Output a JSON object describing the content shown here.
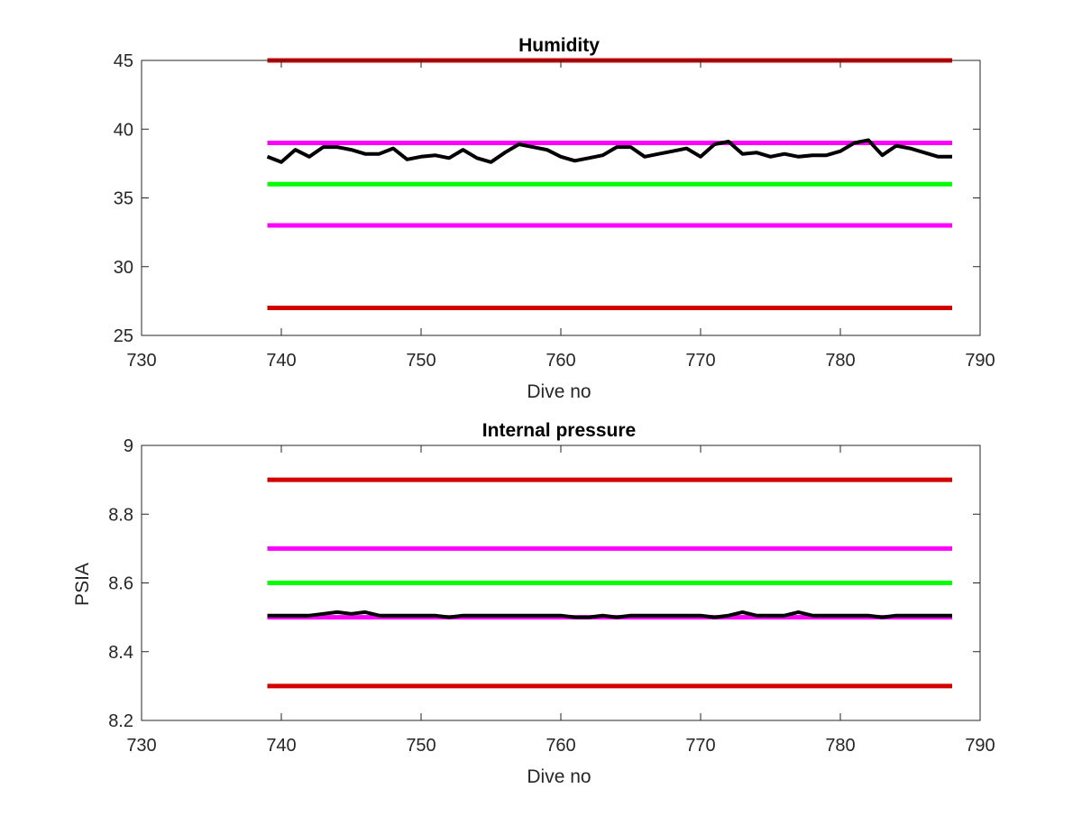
{
  "colors": {
    "upper_limit": "#d40000",
    "lower_limit": "#d40000",
    "upper_warning": "#ff00ff",
    "lower_warning": "#ff00ff",
    "target": "#00ff00",
    "measured": "#000000"
  },
  "chart_data": [
    {
      "type": "line",
      "title": "Humidity",
      "xlabel": "Dive no",
      "ylabel": "",
      "xlim": [
        730,
        790
      ],
      "ylim": [
        25,
        45
      ],
      "xticks": [
        730,
        740,
        750,
        760,
        770,
        780,
        790
      ],
      "yticks": [
        25,
        30,
        35,
        40,
        45
      ],
      "xtick_labels": [
        "730",
        "740",
        "750",
        "760",
        "770",
        "780",
        "790"
      ],
      "ytick_labels": [
        "25",
        "30",
        "35",
        "40",
        "45"
      ],
      "grid": false,
      "reference_lines": [
        {
          "y": 45,
          "x": [
            739,
            788
          ],
          "color_key": "upper_limit"
        },
        {
          "y": 39,
          "x": [
            739,
            788
          ],
          "color_key": "upper_warning"
        },
        {
          "y": 36,
          "x": [
            739,
            788
          ],
          "color_key": "target"
        },
        {
          "y": 33,
          "x": [
            739,
            788
          ],
          "color_key": "lower_warning"
        },
        {
          "y": 27,
          "x": [
            739,
            788
          ],
          "color_key": "lower_limit"
        }
      ],
      "series": [
        {
          "color_key": "measured",
          "x": [
            739,
            740,
            741,
            742,
            743,
            744,
            745,
            746,
            747,
            748,
            749,
            750,
            751,
            752,
            753,
            754,
            755,
            756,
            757,
            758,
            759,
            760,
            761,
            762,
            763,
            764,
            765,
            766,
            767,
            768,
            769,
            770,
            771,
            772,
            773,
            774,
            775,
            776,
            777,
            778,
            779,
            780,
            781,
            782,
            783,
            784,
            785,
            786,
            787,
            788
          ],
          "y": [
            38.0,
            37.6,
            38.5,
            38.0,
            38.7,
            38.7,
            38.5,
            38.2,
            38.2,
            38.6,
            37.8,
            38.0,
            38.1,
            37.9,
            38.5,
            37.9,
            37.6,
            38.3,
            38.9,
            38.7,
            38.5,
            38.0,
            37.7,
            37.9,
            38.1,
            38.7,
            38.7,
            38.0,
            38.2,
            38.4,
            38.6,
            38.0,
            38.9,
            39.1,
            38.2,
            38.3,
            38.0,
            38.2,
            38.0,
            38.1,
            38.1,
            38.4,
            39.0,
            39.2,
            38.1,
            38.8,
            38.6,
            38.3,
            38.0,
            38.0
          ]
        }
      ]
    },
    {
      "type": "line",
      "title": "Internal pressure",
      "xlabel": "Dive no",
      "ylabel": "PSIA",
      "xlim": [
        730,
        790
      ],
      "ylim": [
        8.2,
        9
      ],
      "xticks": [
        730,
        740,
        750,
        760,
        770,
        780,
        790
      ],
      "yticks": [
        8.2,
        8.4,
        8.6,
        8.8,
        9
      ],
      "xtick_labels": [
        "730",
        "740",
        "750",
        "760",
        "770",
        "780",
        "790"
      ],
      "ytick_labels": [
        "8.2",
        "8.4",
        "8.6",
        "8.8",
        "9"
      ],
      "grid": false,
      "reference_lines": [
        {
          "y": 8.9,
          "x": [
            739,
            788
          ],
          "color_key": "upper_limit"
        },
        {
          "y": 8.7,
          "x": [
            739,
            788
          ],
          "color_key": "upper_warning"
        },
        {
          "y": 8.6,
          "x": [
            739,
            788
          ],
          "color_key": "target"
        },
        {
          "y": 8.5,
          "x": [
            739,
            788
          ],
          "color_key": "lower_warning"
        },
        {
          "y": 8.3,
          "x": [
            739,
            788
          ],
          "color_key": "lower_limit"
        }
      ],
      "series": [
        {
          "color_key": "measured",
          "x": [
            739,
            740,
            741,
            742,
            743,
            744,
            745,
            746,
            747,
            748,
            749,
            750,
            751,
            752,
            753,
            754,
            755,
            756,
            757,
            758,
            759,
            760,
            761,
            762,
            763,
            764,
            765,
            766,
            767,
            768,
            769,
            770,
            771,
            772,
            773,
            774,
            775,
            776,
            777,
            778,
            779,
            780,
            781,
            782,
            783,
            784,
            785,
            786,
            787,
            788
          ],
          "y": [
            8.505,
            8.505,
            8.505,
            8.505,
            8.51,
            8.515,
            8.51,
            8.515,
            8.505,
            8.505,
            8.505,
            8.505,
            8.505,
            8.5,
            8.505,
            8.505,
            8.505,
            8.505,
            8.505,
            8.505,
            8.505,
            8.505,
            8.5,
            8.5,
            8.505,
            8.5,
            8.505,
            8.505,
            8.505,
            8.505,
            8.505,
            8.505,
            8.5,
            8.505,
            8.515,
            8.505,
            8.505,
            8.505,
            8.515,
            8.505,
            8.505,
            8.505,
            8.505,
            8.505,
            8.5,
            8.505,
            8.505,
            8.505,
            8.505,
            8.505
          ]
        }
      ]
    }
  ]
}
